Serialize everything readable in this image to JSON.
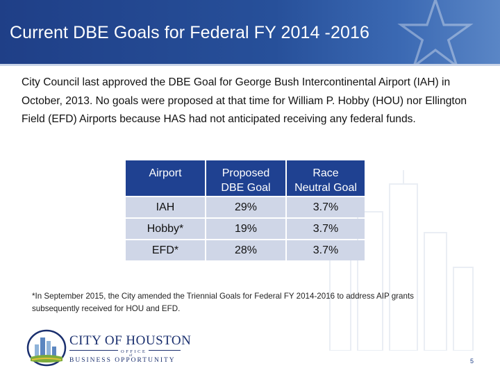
{
  "slide": {
    "title": "Current DBE Goals for Federal FY 2014 -2016",
    "body": "City Council last approved the  DBE Goal for George Bush Intercontinental Airport (IAH) in October, 2013. No goals were proposed at that time for William P. Hobby (HOU) nor Ellington Field (EFD) Airports because HAS had not anticipated receiving any federal funds.",
    "footnote": "*In September 2015, the City amended the Triennial Goals for Federal FY 2014-2016 to address AIP grants subsequently received for  HOU and EFD.",
    "page_number": "5"
  },
  "table": {
    "headers": {
      "airport": "Airport",
      "proposed_line1": "Proposed",
      "proposed_line2": "DBE Goal",
      "race_line1": "Race",
      "race_line2": "Neutral Goal"
    },
    "rows": [
      {
        "airport": "IAH",
        "proposed": "29%",
        "race_neutral": "3.7%"
      },
      {
        "airport": "Hobby*",
        "proposed": "19%",
        "race_neutral": "3.7%"
      },
      {
        "airport": "EFD*",
        "proposed": "28%",
        "race_neutral": "3.7%"
      }
    ]
  },
  "logo": {
    "city": "CITY OF HOUSTON",
    "office": "OFFICE",
    "of": "of",
    "business": "BUSINESS OPPORTUNITY"
  },
  "colors": {
    "banner": "#1f3f87",
    "header_cell": "#1f4191",
    "body_cell": "#cfd6e7"
  }
}
